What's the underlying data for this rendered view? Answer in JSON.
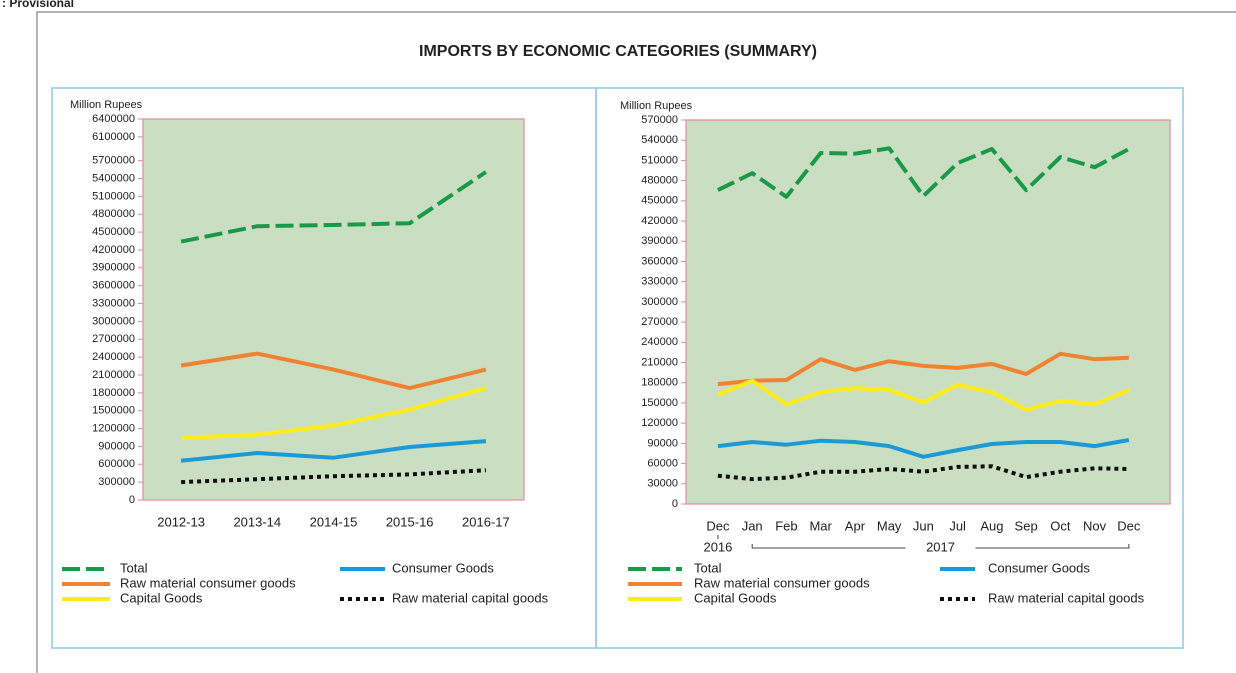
{
  "note": ": Provisional",
  "title": "IMPORTS BY ECONOMIC CATEGORIES (SUMMARY)",
  "chart_data": [
    {
      "type": "line",
      "y_label": "Million Rupees",
      "categories": [
        "2012-13",
        "2013-14",
        "2014-15",
        "2015-16",
        "2016-17"
      ],
      "ylim": [
        0,
        6400000
      ],
      "yticks": [
        0,
        300000,
        600000,
        900000,
        1200000,
        1500000,
        1800000,
        2100000,
        2400000,
        2700000,
        3000000,
        3300000,
        3600000,
        3900000,
        4200000,
        4500000,
        4800000,
        5100000,
        5400000,
        5700000,
        6100000,
        6400000
      ],
      "grid": false,
      "series": [
        {
          "name": "Total",
          "color": "#1a9a48",
          "style": "dashed",
          "values": [
            4340000,
            4600000,
            4620000,
            4650000,
            5510000
          ]
        },
        {
          "name": "Raw material consumer goods",
          "color": "#f08233",
          "style": "solid",
          "values": [
            2260000,
            2460000,
            2190000,
            1880000,
            2190000
          ]
        },
        {
          "name": "Capital Goods",
          "color": "#ffeb1a",
          "style": "solid",
          "values": [
            1040000,
            1100000,
            1250000,
            1520000,
            1880000
          ]
        },
        {
          "name": "Consumer Goods",
          "color": "#1b9ad6",
          "style": "solid",
          "values": [
            660000,
            790000,
            710000,
            890000,
            990000
          ]
        },
        {
          "name": "Raw material capital goods",
          "color": "#111111",
          "style": "dotted",
          "values": [
            300000,
            350000,
            400000,
            430000,
            500000
          ]
        }
      ]
    },
    {
      "type": "line",
      "y_label": "Million Rupees",
      "categories": [
        "Dec",
        "Jan",
        "Feb",
        "Mar",
        "Apr",
        "May",
        "Jun",
        "Jul",
        "Aug",
        "Sep",
        "Oct",
        "Nov",
        "Dec"
      ],
      "year_labels": [
        "2016",
        "2017"
      ],
      "ylim": [
        0,
        570000
      ],
      "yticks": [
        0,
        30000,
        60000,
        90000,
        120000,
        150000,
        180000,
        210000,
        240000,
        270000,
        300000,
        330000,
        360000,
        390000,
        420000,
        450000,
        480000,
        510000,
        540000,
        570000
      ],
      "grid": false,
      "series": [
        {
          "name": "Total",
          "color": "#1a9a48",
          "style": "dashed",
          "values": [
            466000,
            491000,
            456000,
            521000,
            520000,
            528000,
            457000,
            506000,
            527000,
            466000,
            515000,
            500000,
            527000
          ]
        },
        {
          "name": "Raw material consumer goods",
          "color": "#f08233",
          "style": "solid",
          "values": [
            178000,
            183000,
            184000,
            215000,
            199000,
            212000,
            205000,
            202000,
            208000,
            193000,
            223000,
            215000,
            217000
          ]
        },
        {
          "name": "Capital Goods",
          "color": "#ffeb1a",
          "style": "solid",
          "values": [
            162000,
            183000,
            148000,
            166000,
            172000,
            169000,
            151000,
            177000,
            166000,
            140000,
            153000,
            148000,
            169000
          ]
        },
        {
          "name": "Consumer Goods",
          "color": "#1b9ad6",
          "style": "solid",
          "values": [
            86000,
            92000,
            88000,
            94000,
            92000,
            86000,
            70000,
            80000,
            89000,
            92000,
            92000,
            86000,
            95000
          ]
        },
        {
          "name": "Raw material capital goods",
          "color": "#111111",
          "style": "dotted",
          "values": [
            42000,
            37000,
            39000,
            48000,
            48000,
            52000,
            48000,
            55000,
            56000,
            40000,
            48000,
            53000,
            52000
          ]
        }
      ]
    }
  ]
}
